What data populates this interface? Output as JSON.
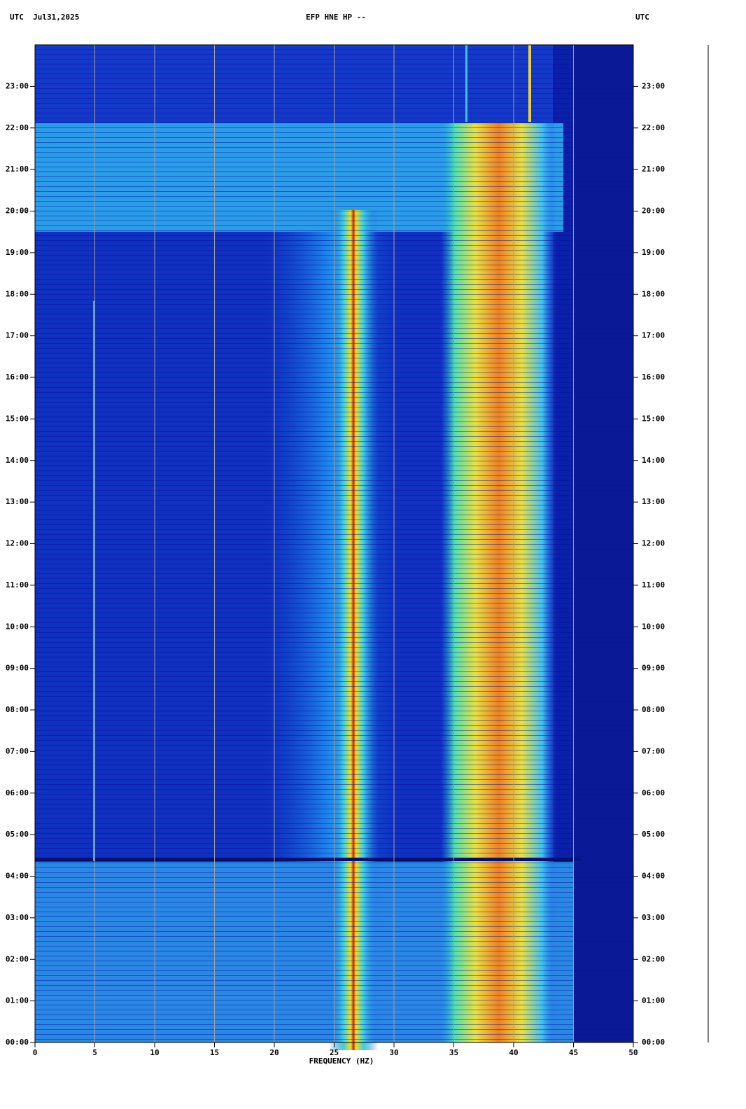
{
  "chart_data": {
    "type": "spectrogram",
    "title": "EFP HNE HP --",
    "left_header": "UTC  Jul31,2025",
    "right_header": "UTC",
    "x_label": "FREQUENCY (HZ)",
    "xlim": [
      0,
      50
    ],
    "xticks": [
      0,
      5,
      10,
      15,
      20,
      25,
      30,
      35,
      40,
      45,
      50
    ],
    "ylim": [
      0,
      24
    ],
    "yticks": [
      {
        "value": 0,
        "label": "00:00"
      },
      {
        "value": 1,
        "label": "01:00"
      },
      {
        "value": 2,
        "label": "02:00"
      },
      {
        "value": 3,
        "label": "03:00"
      },
      {
        "value": 4,
        "label": "04:00"
      },
      {
        "value": 5,
        "label": "05:00"
      },
      {
        "value": 6,
        "label": "06:00"
      },
      {
        "value": 7,
        "label": "07:00"
      },
      {
        "value": 8,
        "label": "08:00"
      },
      {
        "value": 9,
        "label": "09:00"
      },
      {
        "value": 10,
        "label": "10:00"
      },
      {
        "value": 11,
        "label": "11:00"
      },
      {
        "value": 12,
        "label": "12:00"
      },
      {
        "value": 13,
        "label": "13:00"
      },
      {
        "value": 14,
        "label": "14:00"
      },
      {
        "value": 15,
        "label": "15:00"
      },
      {
        "value": 16,
        "label": "16:00"
      },
      {
        "value": 17,
        "label": "17:00"
      },
      {
        "value": 18,
        "label": "18:00"
      },
      {
        "value": 19,
        "label": "19:00"
      },
      {
        "value": 20,
        "label": "20:00"
      },
      {
        "value": 21,
        "label": "21:00"
      },
      {
        "value": 22,
        "label": "22:00"
      },
      {
        "value": 23,
        "label": "23:00"
      }
    ],
    "grid": true,
    "grid_color": "#a0a0a0"
  }
}
